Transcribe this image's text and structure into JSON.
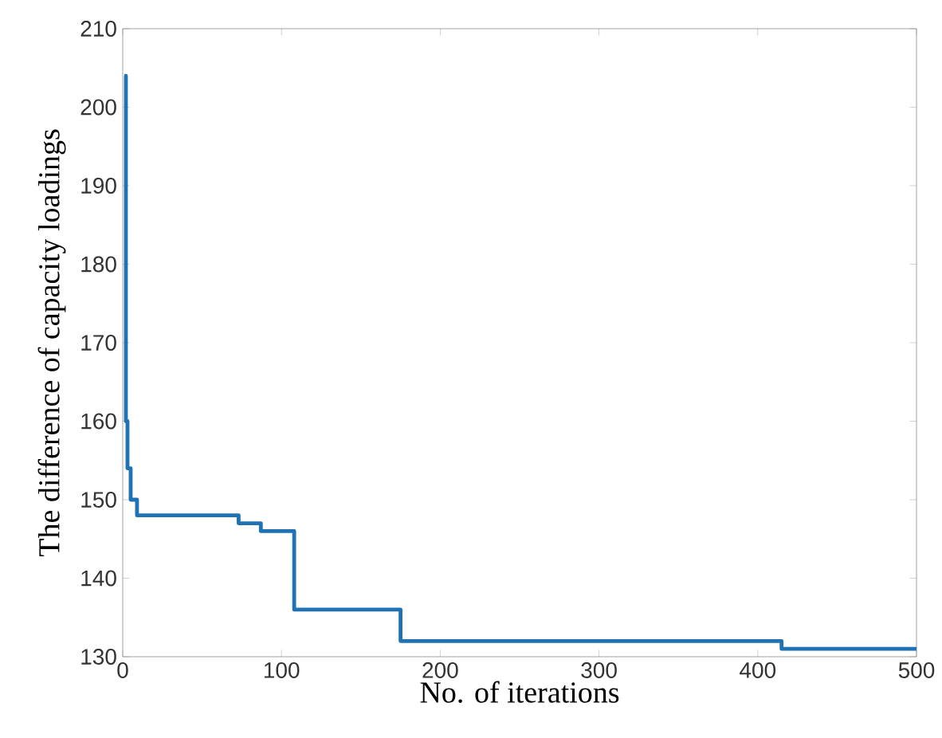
{
  "chart_data": {
    "type": "step",
    "xlabel": "No. of iterations",
    "ylabel": "The difference of capacity loadings",
    "x": [
      1,
      2,
      3,
      5,
      9,
      73,
      87,
      108,
      175,
      415,
      500
    ],
    "series": [
      {
        "color": "#1f72b4",
        "values": [
          204,
          160,
          154,
          150,
          148,
          147,
          146,
          136,
          132,
          131,
          131
        ]
      }
    ],
    "xlim": [
      0,
      500
    ],
    "xticks": [
      0,
      100,
      200,
      300,
      400,
      500
    ],
    "ylim": [
      130,
      210
    ],
    "yticks": [
      130,
      140,
      150,
      160,
      170,
      180,
      190,
      200,
      210
    ],
    "grid": false,
    "marker": "none",
    "line_style": "solid"
  }
}
